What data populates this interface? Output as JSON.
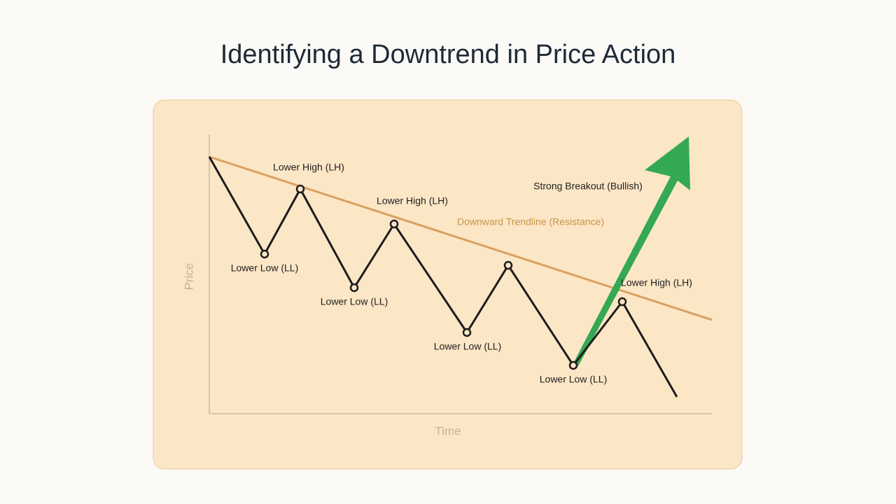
{
  "title": "Identifying a Downtrend in Price Action",
  "axes": {
    "y_label": "Price",
    "x_label": "Time"
  },
  "annotations": {
    "trendline": "Downward Trendline (Resistance)",
    "breakout": "Strong Breakout (Bullish)",
    "points": [
      "Lower High (LH)",
      "Lower Low (LL)",
      "Lower High (LH)",
      "Lower Low (LL)",
      "Lower Low (LL)",
      "Lower Low (LL)",
      "Lower High (LH)"
    ]
  }
}
